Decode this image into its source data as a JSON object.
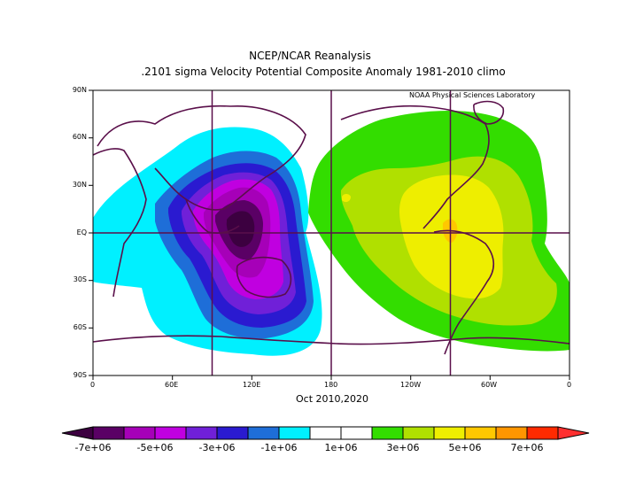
{
  "header": {
    "line1": "NCEP/NCAR Reanalysis",
    "line2": ".2101 sigma Velocity Potential  Composite Anomaly 1981-2010 climo"
  },
  "credit": "NOAA Physical Sciences Laboratory",
  "period": "Oct 2010,2020",
  "axes": {
    "x_ticks": [
      "0",
      "60E",
      "120E",
      "180",
      "120W",
      "60W",
      "0"
    ],
    "y_ticks": [
      "90N",
      "60N",
      "30N",
      "EQ",
      "30S",
      "60S",
      "90S"
    ]
  },
  "colorbar": {
    "labels": [
      "-7e+06",
      "-5e+06",
      "-3e+06",
      "-1e+06",
      "1e+06",
      "3e+06",
      "5e+06",
      "7e+06"
    ],
    "colors": [
      "#5a0065",
      "#a600b8",
      "#c000e0",
      "#7020d8",
      "#2a1ad0",
      "#1e6ed8",
      "#00f0ff",
      "#ffffff",
      "#ffffff",
      "#33dd00",
      "#b0e000",
      "#eeee00",
      "#ffc800",
      "#ff9600",
      "#ff2a00"
    ],
    "under_color": "#3c0040",
    "over_color": "#ff3030"
  },
  "map": {
    "projection": "equirectangular, 0-360 longitude",
    "center_longitude": 180,
    "crosshair_longitudes": [
      "90E",
      "180",
      "90W"
    ],
    "crosshair_latitude": "EQ",
    "negative_center": "Maritime Continent / Australia",
    "positive_center": "Americas / Atlantic"
  }
}
